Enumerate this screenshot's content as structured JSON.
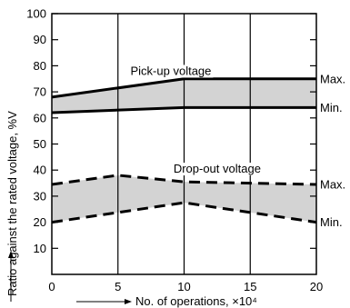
{
  "chart_data": {
    "type": "line",
    "xlabel": "No. of operations, ×10⁴",
    "ylabel": "Ratio against the rated voltage, %V",
    "xlim": [
      0,
      20
    ],
    "ylim": [
      0,
      100
    ],
    "x_ticks": [
      "0",
      "5",
      "10",
      "15",
      "20"
    ],
    "y_ticks": [
      "10",
      "20",
      "30",
      "40",
      "50",
      "60",
      "70",
      "80",
      "90",
      "100"
    ],
    "grid": "vertical lines at x ticks",
    "bands": [
      {
        "name": "Pick-up voltage",
        "line_style": "solid",
        "fill": "#d3d3d3",
        "max_label": "Max.",
        "min_label": "Min.",
        "max": {
          "x": [
            0,
            10,
            20
          ],
          "y": [
            68,
            75,
            75
          ]
        },
        "min": {
          "x": [
            0,
            10,
            20
          ],
          "y": [
            62,
            64,
            64
          ]
        }
      },
      {
        "name": "Drop-out voltage",
        "line_style": "dashed",
        "fill": "#d3d3d3",
        "max_label": "Max.",
        "min_label": "Min.",
        "max": {
          "x": [
            0,
            5,
            10,
            20
          ],
          "y": [
            34.5,
            38,
            35.5,
            34.5
          ]
        },
        "min": {
          "x": [
            0,
            10,
            20
          ],
          "y": [
            20,
            27.5,
            20
          ]
        }
      }
    ]
  }
}
